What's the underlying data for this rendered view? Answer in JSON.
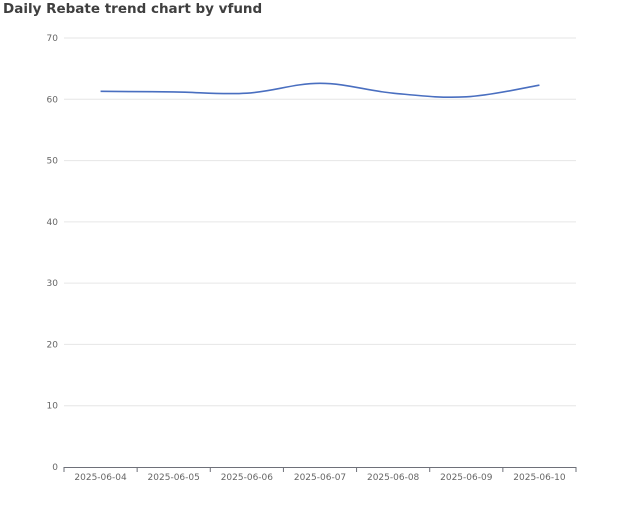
{
  "title": "Daily Rebate trend chart by vfund",
  "chart_data": {
    "type": "line",
    "title": "Daily Rebate trend chart by vfund",
    "xlabel": "",
    "ylabel": "",
    "categories": [
      "2025-06-04",
      "2025-06-05",
      "2025-06-06",
      "2025-06-07",
      "2025-06-08",
      "2025-06-09",
      "2025-06-10"
    ],
    "series": [
      {
        "values": [
          61.3,
          61.2,
          61.0,
          62.6,
          61.0,
          60.4,
          62.3
        ]
      }
    ],
    "ylim": [
      0,
      70
    ],
    "yticks": [
      0,
      10,
      20,
      30,
      40,
      50,
      60,
      70
    ],
    "grid": "horizontal",
    "line_color": "#4a6fc0",
    "grid_color": "#e6e6e6",
    "axis_color": "#6e7079"
  }
}
